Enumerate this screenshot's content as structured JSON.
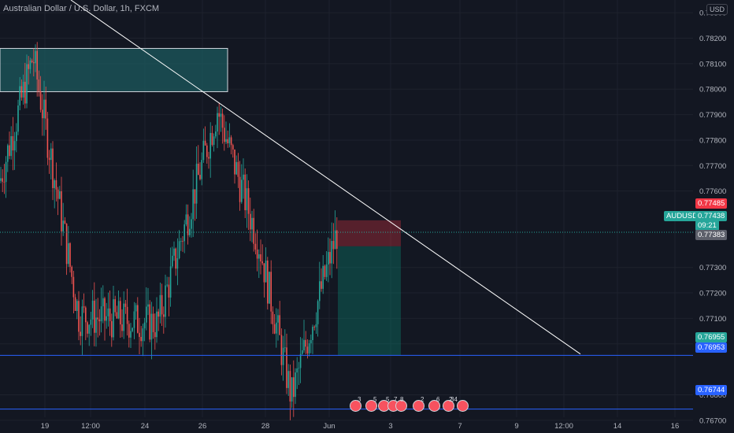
{
  "header": {
    "symbol_title": "Australian Dollar / U.S. Dollar, 1h, FXCM",
    "currency": "USD"
  },
  "colors": {
    "background": "#131722",
    "up": "#26a69a",
    "down": "#ef5350",
    "grid": "#1e222d",
    "trendline": "#ffffff",
    "hline": "#2962ff",
    "supply_zone": "#1c5a5d"
  },
  "price_axis": {
    "labels": [
      "0.78300",
      "0.78200",
      "0.78100",
      "0.78000",
      "0.77900",
      "0.77800",
      "0.77700",
      "0.77600",
      "0.77300",
      "0.77200",
      "0.77100",
      "0.77000",
      "0.76800",
      "0.76700"
    ]
  },
  "price_tags": {
    "stop": "0.77485",
    "symbol": "AUDUSD",
    "last": "0.77438",
    "countdown": "09:21",
    "entry": "0.77383",
    "target1": "0.76955",
    "target2": "0.76953",
    "support": "0.76744"
  },
  "time_axis": {
    "labels": [
      "19",
      "12:00",
      "24",
      "26",
      "28",
      "Jun",
      "3",
      "7",
      "9",
      "12:00",
      "14",
      "16"
    ]
  },
  "events": {
    "counts": [
      "3",
      "5",
      "5",
      "7",
      "8",
      "2",
      "6",
      "2",
      "34"
    ]
  },
  "chart_data": {
    "type": "candlestick",
    "title": "Australian Dollar / U.S. Dollar, 1h, FXCM",
    "ylim": [
      0.7665,
      0.7835
    ],
    "price_path_approx": [
      {
        "label": "start",
        "price": 0.7764
      },
      {
        "label": "19",
        "price": 0.7813
      },
      {
        "label": "12:00",
        "price": 0.7711
      },
      {
        "label": "24",
        "price": 0.7708
      },
      {
        "label": "26",
        "price": 0.7792
      },
      {
        "label": "28",
        "price": 0.7738
      },
      {
        "label": "low",
        "price": 0.7679
      },
      {
        "label": "Jun",
        "price": 0.7744
      }
    ],
    "drawings": {
      "trendline": [
        {
          "price": 0.7835
        },
        {
          "price": 0.7696
        }
      ],
      "supply_zone": [
        0.7799,
        0.7816
      ],
      "short_position": {
        "stop": 0.77485,
        "entry": 0.77383,
        "target": 0.76955
      },
      "horizontal_lines": [
        0.76955,
        0.76744
      ]
    }
  }
}
